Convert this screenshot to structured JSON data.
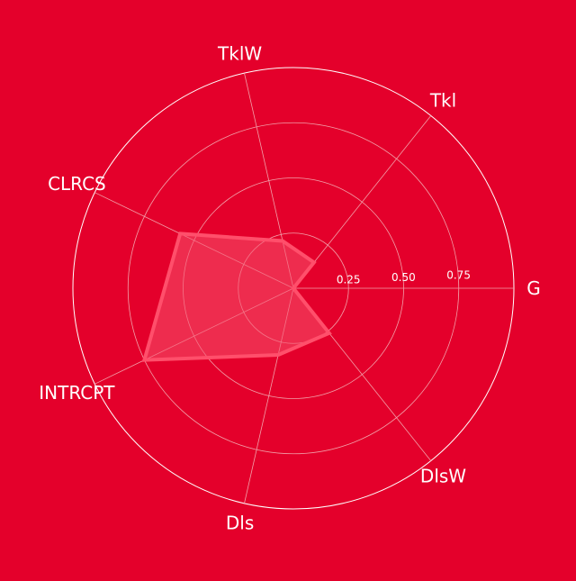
{
  "colors": {
    "background": "#e4002b",
    "grid": "#ffffff",
    "inner_grid": "#f2a0aa",
    "series_line": "#ff4f6b",
    "series_fill": "#f5516b",
    "text": "#ffffff"
  },
  "chart_data": {
    "type": "radar",
    "title": "",
    "axes": [
      "G",
      "Tkl",
      "TklW",
      "CLRCS",
      "INTRCPT",
      "Dls",
      "DlsW"
    ],
    "r_ticks": [
      0.25,
      0.5,
      0.75
    ],
    "r_tick_labels": [
      "0.25",
      "0.50",
      "0.75"
    ],
    "rlim": [
      0,
      1
    ],
    "grid": true,
    "series": [
      {
        "values": [
          0.0,
          0.15,
          0.22,
          0.57,
          0.75,
          0.31,
          0.26
        ]
      }
    ]
  }
}
